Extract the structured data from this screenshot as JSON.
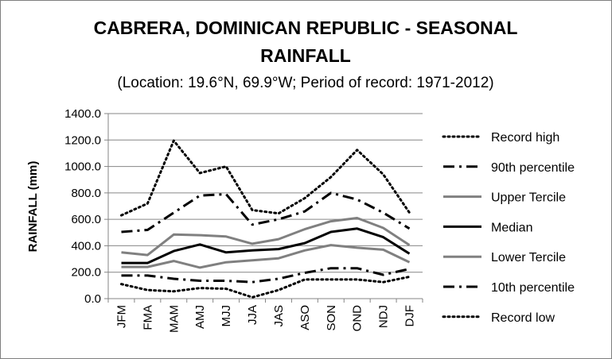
{
  "chart_data": {
    "type": "line",
    "title_line1": "CABRERA, DOMINICAN REPUBLIC - SEASONAL",
    "title_line2": "RAINFALL",
    "subtitle": "(Location: 19.6°N, 69.9°W; Period of record: 1971-2012)",
    "xlabel": "",
    "ylabel": "RAINFALL (mm)",
    "ylim": [
      0,
      1400
    ],
    "yticks": [
      "0.0",
      "200.0",
      "400.0",
      "600.0",
      "800.0",
      "1000.0",
      "1200.0",
      "1400.0"
    ],
    "categories": [
      "JFM",
      "FMA",
      "MAM",
      "AMJ",
      "MJJ",
      "JJA",
      "JAS",
      "ASO",
      "SON",
      "OND",
      "NDJ",
      "DJF"
    ],
    "grid": "horizontal",
    "legend_position": "right",
    "series": [
      {
        "name": "Record high",
        "color": "#000000",
        "style": "dotted",
        "width": 3,
        "values": [
          630,
          720,
          1195,
          950,
          1000,
          670,
          645,
          760,
          920,
          1125,
          940,
          650
        ]
      },
      {
        "name": "90th percentile",
        "color": "#000000",
        "style": "dashdot",
        "width": 3,
        "values": [
          505,
          520,
          650,
          780,
          790,
          560,
          600,
          660,
          800,
          750,
          650,
          530
        ]
      },
      {
        "name": "Upper Tercile",
        "color": "#808080",
        "style": "solid",
        "width": 3,
        "values": [
          350,
          330,
          485,
          480,
          470,
          415,
          450,
          525,
          585,
          610,
          535,
          405
        ]
      },
      {
        "name": "Median",
        "color": "#000000",
        "style": "solid",
        "width": 3,
        "values": [
          270,
          270,
          360,
          410,
          350,
          365,
          375,
          420,
          505,
          530,
          465,
          340
        ]
      },
      {
        "name": "Lower Tercile",
        "color": "#808080",
        "style": "solid",
        "width": 3,
        "values": [
          240,
          240,
          285,
          235,
          275,
          290,
          305,
          365,
          405,
          385,
          370,
          275
        ]
      },
      {
        "name": "10th percentile",
        "color": "#000000",
        "style": "dashdot",
        "width": 3,
        "values": [
          175,
          175,
          150,
          135,
          135,
          125,
          150,
          195,
          230,
          230,
          180,
          225
        ]
      },
      {
        "name": "Record low",
        "color": "#000000",
        "style": "dotted",
        "width": 3,
        "values": [
          110,
          65,
          55,
          80,
          75,
          10,
          65,
          145,
          145,
          145,
          125,
          165
        ]
      }
    ]
  }
}
